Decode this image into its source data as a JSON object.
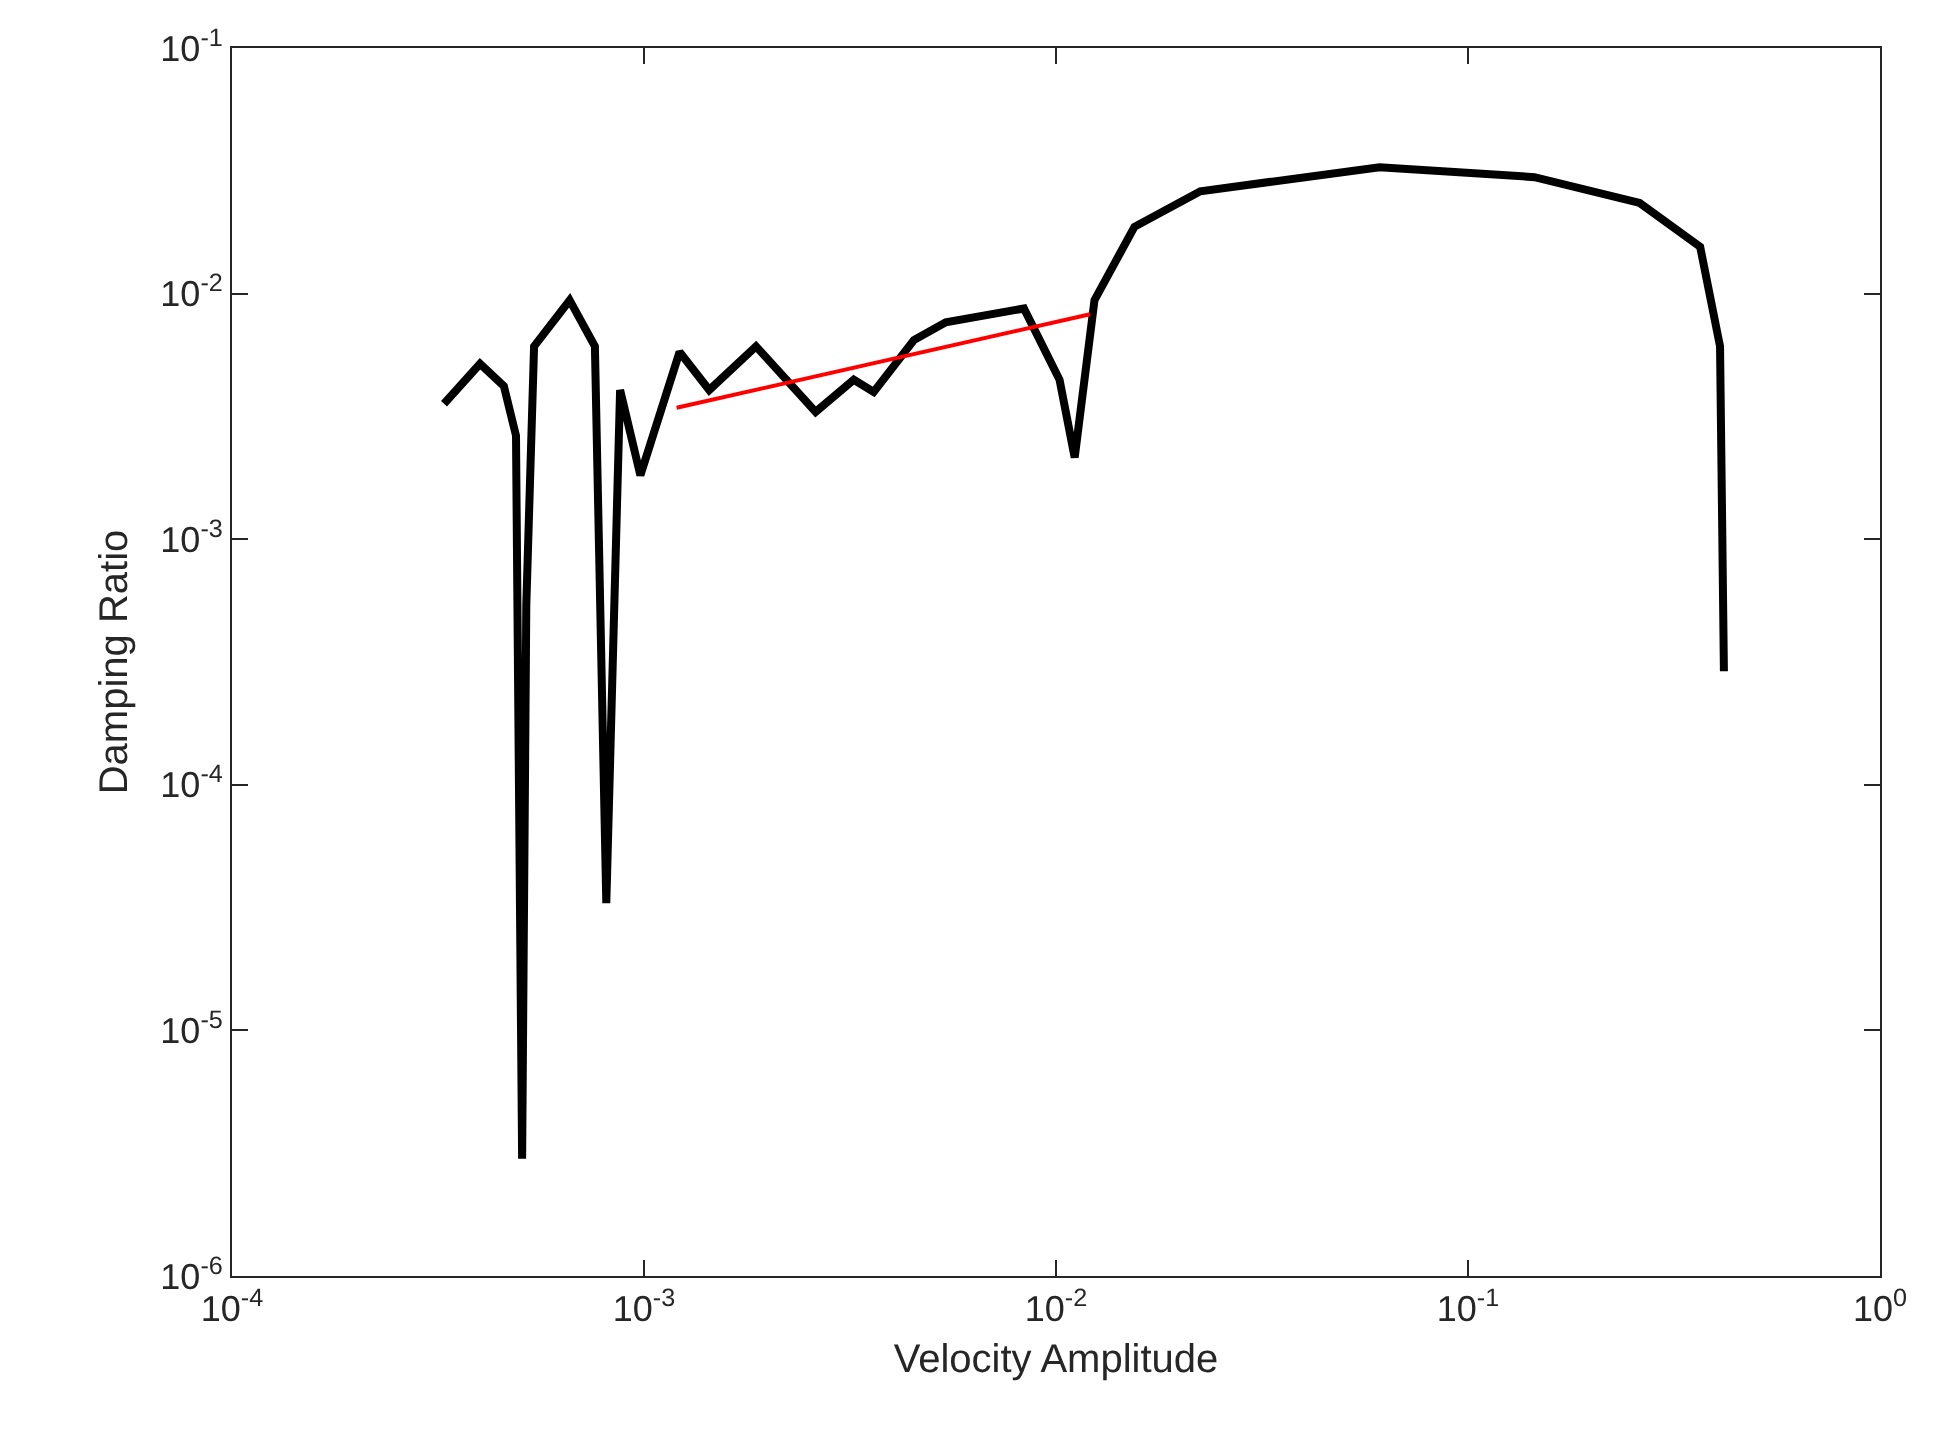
{
  "chart_data": {
    "type": "line",
    "xlabel": "Velocity Amplitude",
    "ylabel": "Damping Ratio",
    "log": "xy",
    "marker": "none",
    "line_style": "solid",
    "xlim": [
      0.0001,
      1
    ],
    "ylim": [
      1e-06,
      0.1
    ],
    "xticks": [
      {
        "value": 0.0001,
        "label": "10$^{-4}$"
      },
      {
        "value": 0.001,
        "label": "10$^{-3}$"
      },
      {
        "value": 0.01,
        "label": "10$^{-2}$"
      },
      {
        "value": 0.1,
        "label": "10$^{-1}$"
      },
      {
        "value": 1,
        "label": "10$^{0}$"
      }
    ],
    "yticks": [
      {
        "value": 1e-06,
        "label": "10$^{-6}$"
      },
      {
        "value": 1e-05,
        "label": "10$^{-5}$"
      },
      {
        "value": 0.0001,
        "label": "10$^{-4}$"
      },
      {
        "value": 0.001,
        "label": "10$^{-3}$"
      },
      {
        "value": 0.01,
        "label": "10$^{-2}$"
      },
      {
        "value": 0.1,
        "label": "10$^{-1}$"
      }
    ],
    "series": [
      {
        "color": "#000000",
        "x": [
          0.000327,
          0.0004,
          0.000457,
          0.000489,
          0.000506,
          0.000518,
          0.000541,
          0.00066,
          0.00076,
          0.00081,
          0.000875,
          0.00098,
          0.00122,
          0.00144,
          0.00187,
          0.00261,
          0.00323,
          0.00361,
          0.00452,
          0.0054,
          0.00836,
          0.0102,
          0.0111,
          0.0124,
          0.0155,
          0.0224,
          0.061,
          0.145,
          0.261,
          0.366,
          0.409,
          0.418
        ],
        "values": [
          0.00356,
          0.00518,
          0.0042,
          0.00264,
          3e-06,
          0.00054,
          0.0061,
          0.0094,
          0.0061,
          3.3e-05,
          0.00405,
          0.00182,
          0.00578,
          0.00405,
          0.0061,
          0.0033,
          0.00446,
          0.00398,
          0.00647,
          0.00764,
          0.0087,
          0.00446,
          0.00215,
          0.0094,
          0.0187,
          0.0261,
          0.0327,
          0.0298,
          0.0234,
          0.0155,
          0.0061,
          0.00029
        ]
      },
      {
        "color": "#ff0000",
        "x": [
          0.0012,
          0.0121
        ],
        "values": [
          0.00343,
          0.00824
        ]
      }
    ]
  }
}
